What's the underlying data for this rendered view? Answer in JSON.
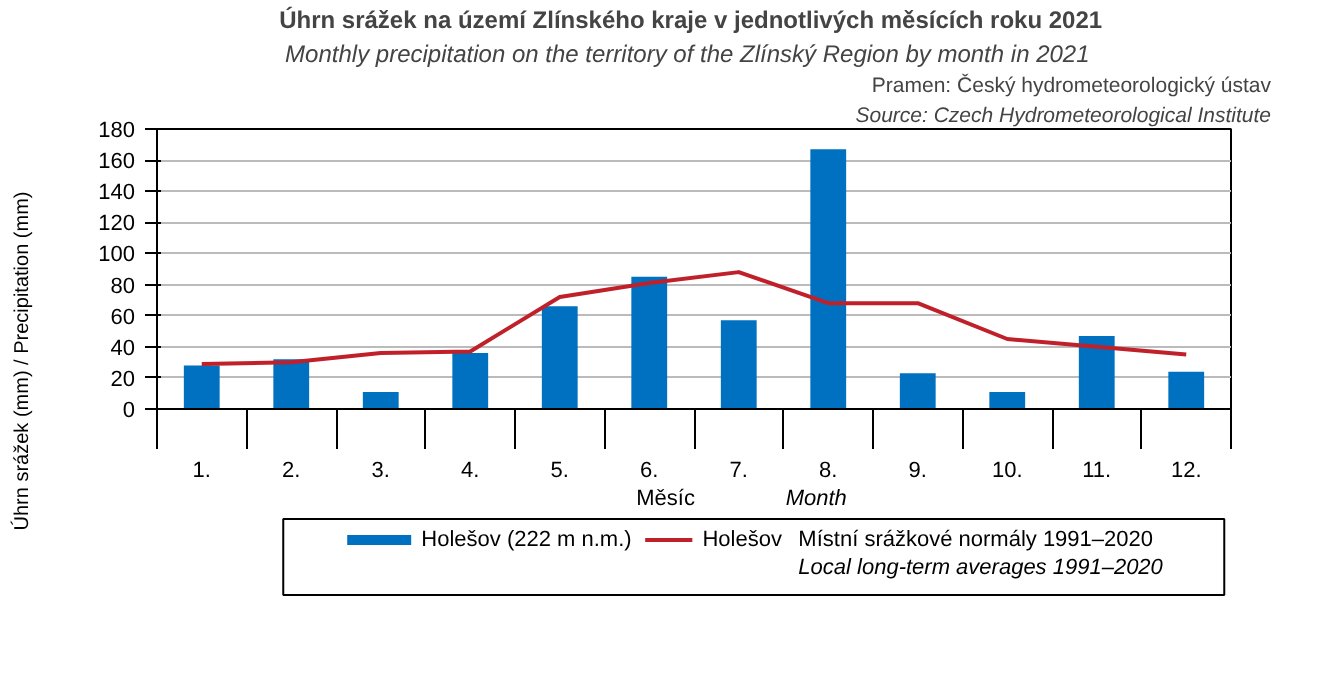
{
  "chart_data": {
    "type": "bar",
    "title": "Úhrn srážek na území Zlínského  kraje v jednotlivých měsících roku 2021",
    "subtitle": "Monthly precipitation  on the territory of the Zlínský Region  by month in 2021",
    "xlabel": "Měsíc",
    "ylabel": "Úhrn srážek (mm) / Precipitation (mm)",
    "annotations": [
      "Pramen: Český hydrometeorologický ústav",
      "Source: Czech Hydrometeorological Institute",
      "Month",
      "Místní  srážkové normály 1991–2020",
      "Local long-term averages 1991–2020"
    ],
    "categories": [
      "1.",
      "2.",
      "3.",
      "4.",
      "5.",
      "6.",
      "7.",
      "8.",
      "9.",
      "10.",
      "11.",
      "12."
    ],
    "series": [
      {
        "name": "Holešov (222 m n.m.)",
        "color": "#0070c0",
        "values": [
          28,
          32,
          11,
          36,
          66,
          85,
          57,
          167,
          23,
          11,
          47,
          24
        ]
      },
      {
        "name": "Holešov",
        "type": "line",
        "color": "#c0202a",
        "values": [
          29,
          30,
          36,
          37,
          72,
          81,
          88,
          68,
          68,
          45,
          40,
          35
        ]
      }
    ],
    "ylim": [
      0,
      180
    ],
    "yticks": [
      0,
      20,
      40,
      60,
      80,
      100,
      120,
      140,
      160,
      180
    ],
    "grid": "y",
    "legend": "bottom"
  }
}
